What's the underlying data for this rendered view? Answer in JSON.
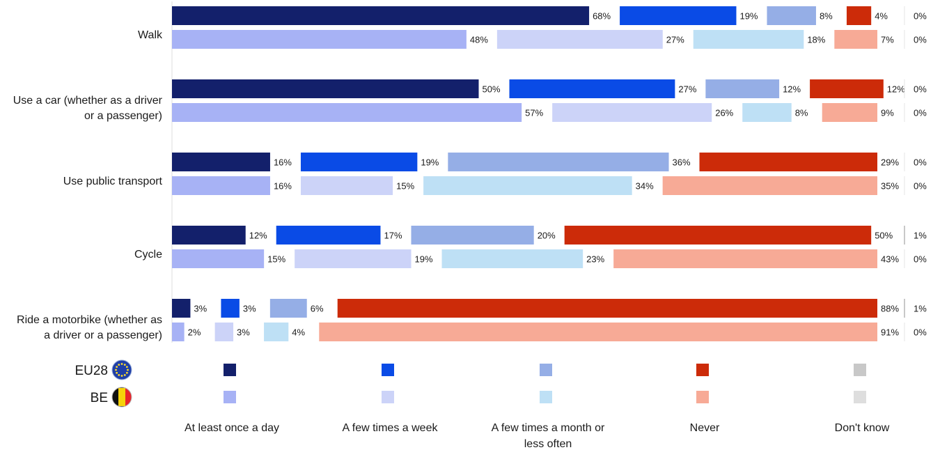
{
  "chart_data": {
    "type": "bar",
    "stacked": true,
    "orientation": "horizontal",
    "categories": [
      [
        "Walk"
      ],
      [
        "Use a car (whether as a driver",
        "or a passenger)"
      ],
      [
        "Use public transport"
      ],
      [
        "Cycle"
      ],
      [
        "Ride a motorbike (whether as",
        "a driver or a passenger)"
      ]
    ],
    "groups": [
      "EU28",
      "BE"
    ],
    "series": [
      {
        "name": "At least once a day",
        "colors": {
          "EU28": "#13206b",
          "BE": "#a7b2f5"
        }
      },
      {
        "name": "A few times a week",
        "colors": {
          "EU28": "#0a4be6",
          "BE": "#ccd3f8"
        }
      },
      {
        "name": "A few times a month or less often",
        "colors": {
          "EU28": "#95aee6",
          "BE": "#bee0f5"
        }
      },
      {
        "name": "Never",
        "colors": {
          "EU28": "#cc2b09",
          "BE": "#f7aa96"
        }
      },
      {
        "name": "Don't know",
        "colors": {
          "EU28": "#c8c8c8",
          "BE": "#dedede"
        }
      }
    ],
    "values": {
      "EU28": [
        [
          68,
          19,
          8,
          4,
          0
        ],
        [
          50,
          27,
          12,
          12,
          0
        ],
        [
          16,
          19,
          36,
          29,
          0
        ],
        [
          12,
          17,
          20,
          50,
          1
        ],
        [
          3,
          3,
          6,
          88,
          1
        ]
      ],
      "BE": [
        [
          48,
          27,
          18,
          7,
          0
        ],
        [
          57,
          26,
          8,
          9,
          0
        ],
        [
          16,
          15,
          34,
          35,
          0
        ],
        [
          15,
          19,
          23,
          43,
          0
        ],
        [
          2,
          3,
          4,
          91,
          0
        ]
      ]
    },
    "unit": "%",
    "legend": {
      "region_labels": [
        "EU28",
        "BE"
      ],
      "series_labels": [
        [
          "At least once a day"
        ],
        [
          "A few times a week"
        ],
        [
          "A few times a month or",
          "less often"
        ],
        [
          "Never"
        ],
        [
          "Don't know"
        ]
      ]
    }
  }
}
